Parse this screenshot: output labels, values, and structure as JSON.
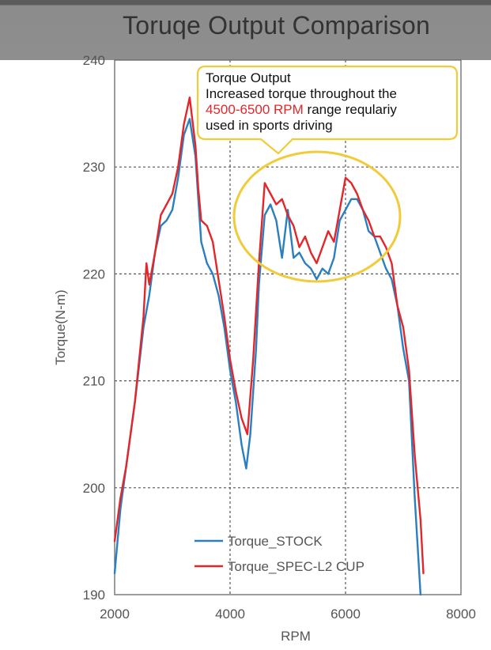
{
  "chart_data": {
    "type": "line",
    "title": "Toruqe Output Comparison",
    "xlabel": "RPM",
    "ylabel": "Torque(N-m)",
    "xlim": [
      2000,
      8000
    ],
    "ylim": [
      190,
      240
    ],
    "xticks": [
      "2000",
      "4000",
      "6000",
      "8000"
    ],
    "yticks": [
      "190",
      "200",
      "210",
      "220",
      "230",
      "240"
    ],
    "grid": true,
    "legend_position": "bottom-center",
    "series": [
      {
        "name": "Torque_STOCK",
        "color": "#2a7fc1",
        "x": [
          2000,
          2100,
          2200,
          2350,
          2500,
          2600,
          2700,
          2800,
          2900,
          3000,
          3100,
          3200,
          3300,
          3400,
          3450,
          3500,
          3600,
          3700,
          3800,
          3900,
          4000,
          4100,
          4200,
          4280,
          4350,
          4450,
          4500,
          4600,
          4700,
          4800,
          4900,
          5000,
          5100,
          5200,
          5300,
          5400,
          5500,
          5600,
          5700,
          5800,
          5900,
          6000,
          6100,
          6200,
          6300,
          6400,
          6500,
          6600,
          6700,
          6800,
          6900,
          7000,
          7100,
          7200,
          7300
        ],
        "y": [
          192,
          198,
          202,
          208,
          215,
          218,
          222,
          224.5,
          225,
          226,
          229,
          233,
          234.5,
          231,
          227,
          223,
          221,
          220,
          218,
          215,
          211,
          208,
          204,
          201.8,
          205,
          213,
          219,
          225.5,
          226.5,
          225,
          221.5,
          226,
          221.5,
          222,
          221,
          220.5,
          219.5,
          220.5,
          220,
          221.5,
          225,
          226,
          227,
          227,
          226,
          224,
          223.5,
          222,
          220.5,
          219.5,
          217,
          213,
          210,
          199,
          190
        ]
      },
      {
        "name": "Torque_SPEC-L2 CUP",
        "color": "#e3262a",
        "x": [
          2000,
          2100,
          2200,
          2350,
          2500,
          2550,
          2600,
          2700,
          2800,
          2900,
          3000,
          3100,
          3200,
          3300,
          3400,
          3450,
          3500,
          3600,
          3700,
          3800,
          3900,
          4000,
          4100,
          4200,
          4300,
          4400,
          4500,
          4600,
          4700,
          4800,
          4900,
          5000,
          5100,
          5200,
          5300,
          5400,
          5500,
          5600,
          5700,
          5800,
          5900,
          6000,
          6100,
          6200,
          6300,
          6400,
          6500,
          6600,
          6700,
          6800,
          6900,
          7000,
          7100,
          7200,
          7300,
          7350
        ],
        "y": [
          195,
          199,
          202,
          208,
          216,
          221,
          219,
          222,
          225.5,
          226.5,
          227.5,
          230,
          234,
          236.5,
          232,
          228,
          225,
          224.5,
          223,
          219.5,
          216,
          212,
          209,
          206.5,
          205,
          212,
          221,
          228.5,
          227.5,
          226.5,
          227,
          225.5,
          224.5,
          222.5,
          223.5,
          222,
          221,
          222.5,
          224,
          223,
          226,
          229,
          228.5,
          227.5,
          226,
          225,
          223.5,
          223.5,
          222.5,
          221,
          217,
          215,
          211,
          203,
          197,
          192
        ]
      }
    ],
    "annotation": {
      "line1": "Torque Output",
      "line2": "Increased torque throughout the",
      "line3_highlight": "4500-6500 RPM",
      "line3_rest": " range requlariy",
      "line4": "used in sports driving",
      "highlight_color": "#e8262a",
      "border_color": "#f2cb3a"
    }
  }
}
